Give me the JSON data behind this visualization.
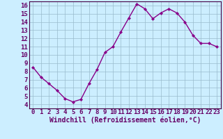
{
  "x": [
    0,
    1,
    2,
    3,
    4,
    5,
    6,
    7,
    8,
    9,
    10,
    11,
    12,
    13,
    14,
    15,
    16,
    17,
    18,
    19,
    20,
    21,
    22,
    23
  ],
  "y": [
    8.5,
    7.3,
    6.5,
    5.7,
    4.7,
    4.3,
    4.6,
    6.5,
    8.2,
    10.3,
    11.0,
    12.8,
    14.5,
    16.2,
    15.6,
    14.4,
    15.1,
    15.6,
    15.1,
    14.0,
    12.4,
    11.4,
    11.4,
    11.0
  ],
  "line_color": "#880088",
  "marker": "D",
  "marker_size": 2.2,
  "bg_color": "#cceeff",
  "grid_color": "#99bbcc",
  "xlabel": "Windchill (Refroidissement éolien,°C)",
  "xlim": [
    -0.5,
    23.5
  ],
  "ylim": [
    3.5,
    16.5
  ],
  "yticks": [
    4,
    5,
    6,
    7,
    8,
    9,
    10,
    11,
    12,
    13,
    14,
    15,
    16
  ],
  "xticks": [
    0,
    1,
    2,
    3,
    4,
    5,
    6,
    7,
    8,
    9,
    10,
    11,
    12,
    13,
    14,
    15,
    16,
    17,
    18,
    19,
    20,
    21,
    22,
    23
  ],
  "tick_label_fontsize": 6.5,
  "xlabel_fontsize": 7.0,
  "line_width": 1.0
}
